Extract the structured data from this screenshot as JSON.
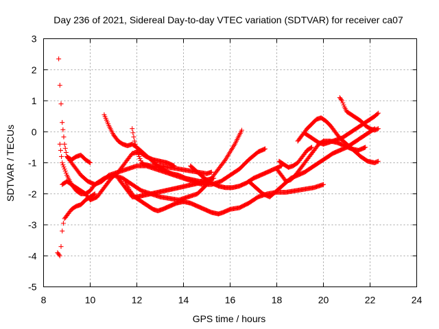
{
  "chart_data": {
    "type": "scatter",
    "title": "Day 236 of 2021, Sidereal Day-to-day VTEC variation (SDTVAR) for receiver ca07",
    "xlabel": "GPS time / hours",
    "ylabel": "SDTVAR / TECUs",
    "xlim": [
      8,
      24
    ],
    "ylim": [
      -5,
      3
    ],
    "xticks": [
      8,
      10,
      12,
      14,
      16,
      18,
      20,
      22,
      24
    ],
    "yticks": [
      -5,
      -4,
      -3,
      -2,
      -1,
      0,
      1,
      2,
      3
    ],
    "grid": true,
    "marker": "+",
    "color": "#ff0000",
    "series": [
      {
        "name": "s1",
        "x": [
          8.65,
          8.7,
          8.75,
          8.8,
          8.9,
          9.0,
          9.2,
          9.4,
          9.6,
          9.8,
          10.0
        ],
        "y": [
          2.35,
          1.5,
          0.9,
          0.3,
          -0.4,
          -0.8,
          -0.9,
          -0.8,
          -0.75,
          -0.9,
          -1.0
        ]
      },
      {
        "name": "s2",
        "x": [
          8.6,
          8.7,
          8.75,
          8.8,
          8.85,
          8.9,
          9.0,
          9.2,
          9.4,
          9.6,
          9.8,
          10.0,
          10.2
        ],
        "y": [
          -3.9,
          -4.0,
          -3.7,
          -3.2,
          -2.95,
          -2.8,
          -2.7,
          -2.5,
          -2.4,
          -2.35,
          -2.2,
          -2.1,
          -2.0
        ]
      },
      {
        "name": "s3",
        "x": [
          8.7,
          8.8,
          9.0,
          9.2,
          9.4,
          9.6,
          9.8,
          10.0,
          10.2,
          10.4,
          10.6,
          11.0,
          11.4,
          11.8,
          12.2,
          12.6,
          13.0,
          13.4,
          13.8,
          14.2,
          14.6,
          15.0,
          15.4,
          15.8,
          16.2,
          16.5
        ],
        "y": [
          -0.4,
          -1.0,
          -1.4,
          -1.7,
          -1.9,
          -2.0,
          -2.0,
          -1.9,
          -1.7,
          -1.6,
          -1.5,
          -1.4,
          -1.5,
          -1.7,
          -1.9,
          -2.0,
          -2.1,
          -2.15,
          -2.2,
          -2.1,
          -2.0,
          -1.7,
          -1.3,
          -0.9,
          -0.4,
          0.05
        ]
      },
      {
        "name": "s4",
        "x": [
          8.8,
          9.0,
          9.2,
          9.4,
          9.6,
          9.8,
          10.0,
          10.3,
          10.6,
          10.9,
          11.2,
          11.5,
          11.8,
          12.1,
          12.4,
          12.7,
          13.0,
          13.3,
          13.6
        ],
        "y": [
          -1.7,
          -1.6,
          -1.7,
          -1.8,
          -1.9,
          -2.0,
          -2.2,
          -2.1,
          -1.8,
          -1.5,
          -1.3,
          -1.0,
          -0.7,
          -0.65,
          -0.8,
          -0.9,
          -0.95,
          -1.0,
          -1.1
        ]
      },
      {
        "name": "s5",
        "x": [
          9.0,
          9.3,
          9.6,
          9.9,
          10.2,
          10.5,
          10.8,
          11.2,
          11.6,
          12.0,
          12.4,
          12.8,
          13.2,
          13.6,
          14.0,
          14.4,
          14.8,
          15.2,
          15.6,
          16.0,
          16.4,
          16.8,
          17.2,
          17.5
        ],
        "y": [
          -0.8,
          -1.1,
          -1.4,
          -1.6,
          -1.7,
          -1.6,
          -1.4,
          -1.3,
          -1.2,
          -1.1,
          -1.1,
          -1.2,
          -1.3,
          -1.4,
          -1.5,
          -1.6,
          -1.7,
          -1.7,
          -1.6,
          -1.4,
          -1.2,
          -0.9,
          -0.65,
          -0.55
        ]
      },
      {
        "name": "s6",
        "x": [
          10.6,
          10.8,
          11.0,
          11.2,
          11.4,
          11.6,
          11.8,
          12.0,
          12.3,
          12.6,
          12.9,
          13.2,
          13.5,
          13.8,
          14.1,
          14.4,
          14.7,
          15.0,
          15.3
        ],
        "y": [
          0.55,
          0.2,
          -0.1,
          -0.3,
          -0.4,
          -0.45,
          -0.4,
          -0.5,
          -0.7,
          -0.9,
          -1.1,
          -1.25,
          -1.35,
          -1.4,
          -1.5,
          -1.55,
          -1.6,
          -1.55,
          -1.5
        ]
      },
      {
        "name": "s7",
        "x": [
          11.8,
          11.9,
          12.0,
          12.1,
          12.2,
          12.3,
          12.6,
          13.0,
          13.4,
          13.8,
          14.2,
          14.6,
          15.0,
          15.2
        ],
        "y": [
          0.1,
          -0.3,
          -0.6,
          -0.8,
          -1.0,
          -1.05,
          -1.1,
          -1.1,
          -1.15,
          -1.2,
          -1.25,
          -1.3,
          -1.35,
          -1.3
        ]
      },
      {
        "name": "s8",
        "x": [
          11.5,
          11.7,
          11.9,
          12.1,
          12.3,
          12.5,
          12.7,
          12.9,
          13.1,
          13.4,
          13.7,
          14.0,
          14.3,
          14.6,
          14.9,
          15.2,
          15.5,
          15.7,
          16.0,
          16.4,
          16.8,
          17.2,
          17.6,
          18.0,
          18.4,
          18.8,
          19.2,
          19.6,
          20.0
        ],
        "y": [
          -1.6,
          -1.9,
          -2.1,
          -2.2,
          -2.3,
          -2.4,
          -2.5,
          -2.55,
          -2.5,
          -2.4,
          -2.3,
          -2.25,
          -2.3,
          -2.4,
          -2.5,
          -2.6,
          -2.65,
          -2.6,
          -2.5,
          -2.45,
          -2.3,
          -2.1,
          -2.0,
          -1.95,
          -1.95,
          -1.9,
          -1.85,
          -1.8,
          -1.7
        ]
      },
      {
        "name": "s9",
        "x": [
          11.2,
          11.4,
          11.6,
          11.8,
          12.0,
          12.3,
          12.6,
          12.9,
          13.2,
          13.5,
          13.8,
          14.1,
          14.4,
          14.7,
          15.0
        ],
        "y": [
          -1.5,
          -1.7,
          -1.9,
          -2.1,
          -2.1,
          -2.05,
          -2.0,
          -1.95,
          -1.9,
          -1.85,
          -1.8,
          -1.75,
          -1.7,
          -1.65,
          -1.6
        ]
      },
      {
        "name": "s10",
        "x": [
          14.3,
          14.6,
          14.9,
          15.2,
          15.5,
          15.8,
          16.1,
          16.4,
          16.7,
          17.0,
          17.3,
          17.6,
          17.9,
          18.2
        ],
        "y": [
          -1.1,
          -1.3,
          -1.5,
          -1.65,
          -1.75,
          -1.8,
          -1.8,
          -1.75,
          -1.65,
          -1.5,
          -1.4,
          -1.3,
          -1.2,
          -1.1
        ]
      },
      {
        "name": "s11",
        "x": [
          16.8,
          17.1,
          17.4,
          17.7,
          18.0,
          18.3,
          18.6,
          18.9,
          19.2,
          19.5,
          19.8,
          20.1,
          20.4,
          20.7,
          21.0,
          21.3,
          21.6,
          21.9,
          22.2
        ],
        "y": [
          -1.6,
          -1.8,
          -2.0,
          -2.1,
          -1.9,
          -1.7,
          -1.5,
          -1.4,
          -1.3,
          -1.15,
          -1.0,
          -0.85,
          -0.7,
          -0.6,
          -0.5,
          -0.35,
          -0.2,
          -0.05,
          0.1
        ]
      },
      {
        "name": "s12",
        "x": [
          18.0,
          18.2,
          18.4,
          18.6,
          18.8,
          19.0,
          19.2,
          19.4,
          19.6,
          19.8,
          20.0,
          20.3,
          20.6,
          20.9,
          21.2,
          21.5,
          21.8
        ],
        "y": [
          -1.2,
          -1.4,
          -1.6,
          -1.55,
          -1.4,
          -1.2,
          -1.0,
          -0.8,
          -0.6,
          -0.4,
          -0.3,
          -0.3,
          -0.35,
          -0.45,
          -0.55,
          -0.6,
          -0.5
        ]
      },
      {
        "name": "s13",
        "x": [
          18.9,
          19.1,
          19.3,
          19.5,
          19.7,
          19.9,
          20.1,
          20.3,
          20.5,
          20.7,
          21.0,
          21.3,
          21.6,
          21.9,
          22.2,
          22.35
        ],
        "y": [
          -0.3,
          -0.1,
          0.1,
          0.25,
          0.4,
          0.45,
          0.35,
          0.2,
          0.0,
          -0.2,
          -0.4,
          -0.6,
          -0.8,
          -0.95,
          -1.0,
          -0.95
        ]
      },
      {
        "name": "s14",
        "x": [
          20.7,
          20.8,
          20.9,
          21.0,
          21.2,
          21.4,
          21.6,
          21.8,
          22.0,
          22.2,
          22.35
        ],
        "y": [
          1.1,
          1.0,
          0.8,
          0.65,
          0.55,
          0.45,
          0.35,
          0.2,
          0.1,
          0.05,
          0.1
        ]
      },
      {
        "name": "s15",
        "x": [
          19.2,
          19.4,
          19.6,
          19.8,
          20.0,
          20.2,
          20.4,
          20.6,
          20.8,
          21.0,
          21.2,
          21.4,
          21.6,
          21.8,
          22.0,
          22.2,
          22.35
        ],
        "y": [
          -0.05,
          -0.15,
          -0.25,
          -0.35,
          -0.4,
          -0.35,
          -0.3,
          -0.25,
          -0.2,
          -0.1,
          0.0,
          0.1,
          0.2,
          0.3,
          0.4,
          0.5,
          0.6
        ]
      },
      {
        "name": "s16",
        "x": [
          18.1,
          18.3,
          18.5,
          18.7,
          18.9,
          19.1,
          19.3,
          19.5
        ],
        "y": [
          -0.95,
          -1.05,
          -1.15,
          -1.1,
          -1.0,
          -0.8,
          -0.6,
          -0.5
        ]
      }
    ]
  }
}
